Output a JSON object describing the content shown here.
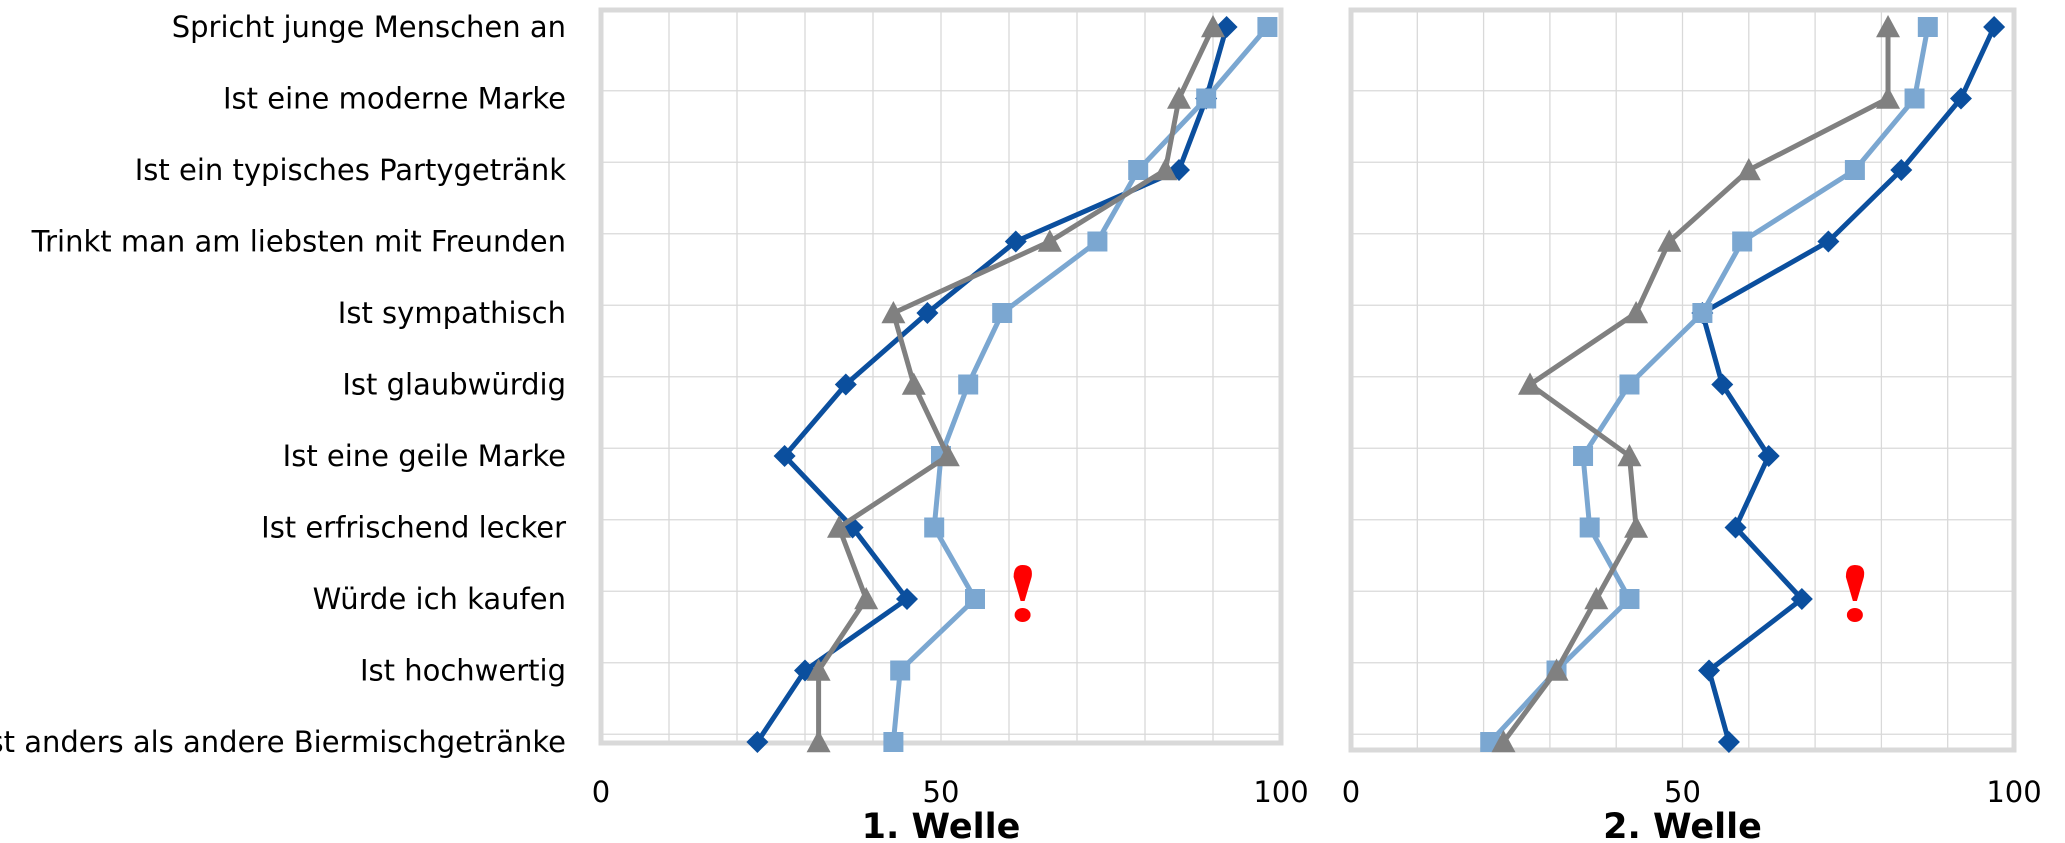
{
  "chart_data": {
    "type": "line",
    "categories": [
      "Spricht junge Menschen an",
      "Ist eine moderne Marke",
      "Ist ein typisches Partygetränk",
      "Trinkt man am liebsten mit Freunden",
      "Ist sympathisch",
      "Ist glaubwürdig",
      "Ist eine geile Marke",
      "Ist erfrischend lecker",
      "Würde ich kaufen",
      "Ist hochwertig",
      "Ist anders als andere Biermischgetränke"
    ],
    "panels": [
      {
        "title": "1. Welle",
        "xlim": [
          0,
          100
        ],
        "xticks": [
          "0",
          "50",
          "100"
        ],
        "annotation": {
          "text": "!",
          "category_index": 8,
          "x": 62
        },
        "series": [
          {
            "marker": "diamond",
            "color": "#0b4f9e",
            "values": [
              92,
              89,
              85,
              61,
              48,
              36,
              27,
              37,
              45,
              30,
              23
            ]
          },
          {
            "marker": "square",
            "color": "#7ba7d1",
            "values": [
              98,
              89,
              79,
              73,
              59,
              54,
              50,
              49,
              55,
              44,
              43
            ]
          },
          {
            "marker": "triangle",
            "color": "#808080",
            "values": [
              90,
              85,
              83,
              66,
              43,
              46,
              51,
              35,
              39,
              32,
              32
            ]
          }
        ]
      },
      {
        "title": "2. Welle",
        "xlim": [
          0,
          100
        ],
        "xticks": [
          "0",
          "50",
          "100"
        ],
        "annotation": {
          "text": "!",
          "category_index": 8,
          "x": 76
        },
        "series": [
          {
            "marker": "diamond",
            "color": "#0b4f9e",
            "values": [
              97,
              92,
              83,
              72,
              53,
              56,
              63,
              58,
              68,
              54,
              57
            ]
          },
          {
            "marker": "square",
            "color": "#7ba7d1",
            "values": [
              87,
              85,
              76,
              59,
              53,
              42,
              35,
              36,
              42,
              31,
              21
            ]
          },
          {
            "marker": "triangle",
            "color": "#808080",
            "values": [
              81,
              81,
              60,
              48,
              43,
              27,
              42,
              43,
              37,
              31,
              23
            ]
          }
        ]
      }
    ]
  }
}
